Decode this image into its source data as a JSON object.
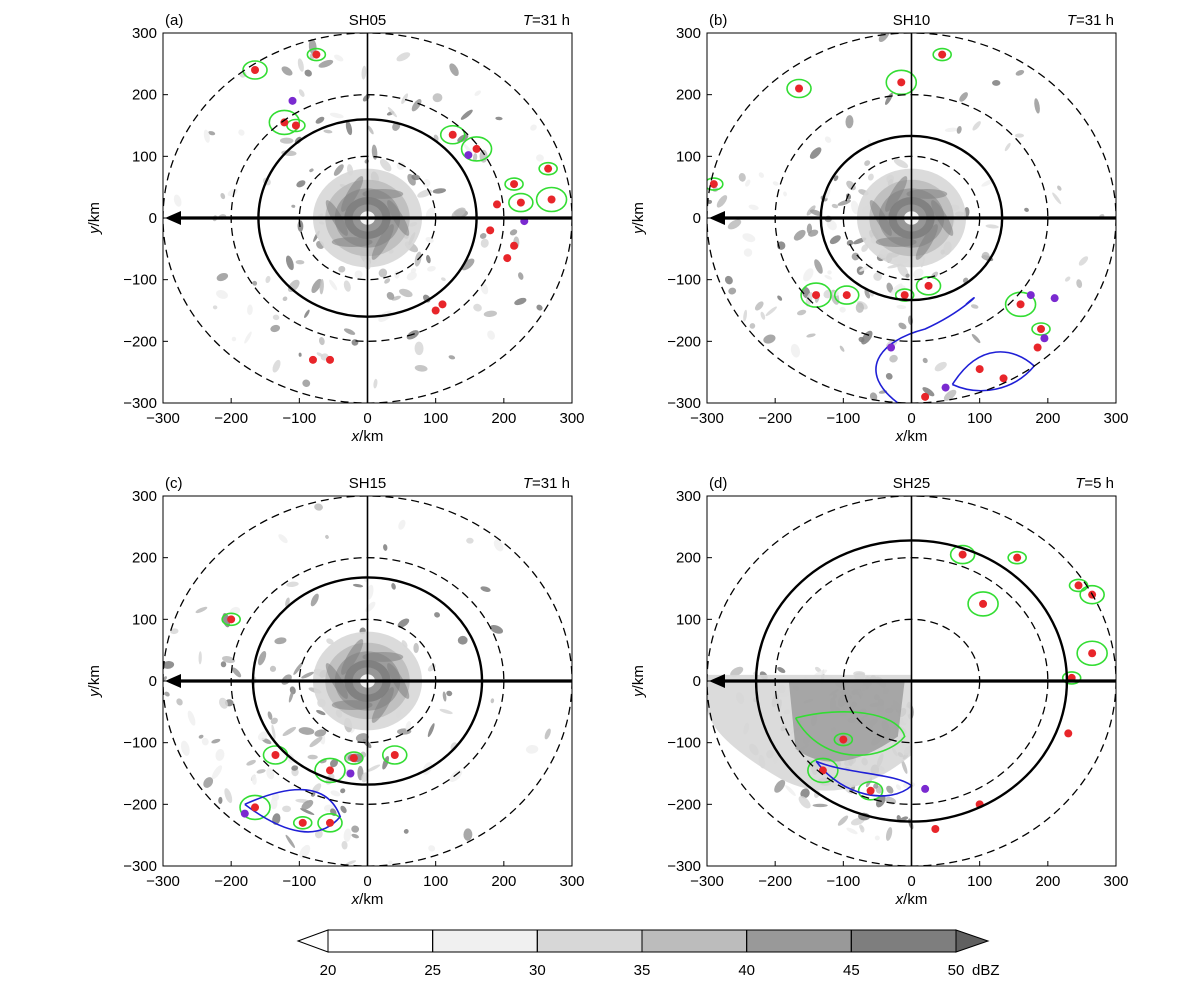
{
  "chart_data": [
    {
      "type": "contour",
      "panel_label": "(a)",
      "title": "SH05",
      "time_label": {
        "var": "T",
        "text": "=31 h"
      },
      "xlabel": {
        "var": "x",
        "unit": "/km"
      },
      "ylabel": {
        "var": "y",
        "unit": "/km"
      },
      "xlim": [
        -300,
        300
      ],
      "ylim": [
        -300,
        300
      ],
      "xticks": [
        -300,
        -200,
        -100,
        0,
        100,
        200,
        300
      ],
      "yticks": [
        -300,
        -200,
        -100,
        0,
        100,
        200,
        300
      ],
      "dashed_circle_radii_km": [
        100,
        200,
        300
      ],
      "solid_circle_radius_km": 160,
      "shear_arrow": "toward -x",
      "red_dots": [
        [
          -75,
          265
        ],
        [
          -165,
          240
        ],
        [
          -122,
          155
        ],
        [
          -105,
          150
        ],
        [
          125,
          135
        ],
        [
          160,
          112
        ],
        [
          215,
          55
        ],
        [
          225,
          25
        ],
        [
          270,
          30
        ],
        [
          265,
          80
        ],
        [
          190,
          22
        ],
        [
          180,
          -20
        ],
        [
          205,
          -65
        ],
        [
          215,
          -45
        ],
        [
          110,
          -140
        ],
        [
          100,
          -150
        ],
        [
          -80,
          -230
        ],
        [
          -55,
          -230
        ]
      ],
      "purple_dots": [
        [
          -110,
          190
        ],
        [
          148,
          102
        ],
        [
          230,
          -5
        ]
      ],
      "core_ring_dbz": [
        40,
        45
      ],
      "colorbar": {
        "unit": "dBZ",
        "ticks": [
          20,
          25,
          30,
          35,
          40,
          45,
          50
        ]
      }
    },
    {
      "type": "contour",
      "panel_label": "(b)",
      "title": "SH10",
      "time_label": {
        "var": "T",
        "text": "=31 h"
      },
      "xlabel": {
        "var": "x",
        "unit": "/km"
      },
      "ylabel": {
        "var": "y",
        "unit": "/km"
      },
      "xlim": [
        -300,
        300
      ],
      "ylim": [
        -300,
        300
      ],
      "xticks": [
        -300,
        -200,
        -100,
        0,
        100,
        200,
        300
      ],
      "yticks": [
        -300,
        -200,
        -100,
        0,
        100,
        200,
        300
      ],
      "dashed_circle_radii_km": [
        100,
        200,
        300
      ],
      "solid_circle_radius_km": 133,
      "shear_arrow": "toward -x",
      "red_dots": [
        [
          -290,
          55
        ],
        [
          -165,
          210
        ],
        [
          -15,
          220
        ],
        [
          45,
          265
        ],
        [
          -95,
          -125
        ],
        [
          -140,
          -125
        ],
        [
          -10,
          -125
        ],
        [
          25,
          -110
        ],
        [
          160,
          -140
        ],
        [
          190,
          -180
        ],
        [
          185,
          -210
        ],
        [
          20,
          -290
        ],
        [
          100,
          -245
        ],
        [
          135,
          -260
        ]
      ],
      "purple_dots": [
        [
          -30,
          -210
        ],
        [
          50,
          -275
        ],
        [
          175,
          -125
        ],
        [
          195,
          -195
        ],
        [
          210,
          -130
        ]
      ],
      "core_ring_dbz": [
        40,
        45
      ],
      "colorbar": {
        "unit": "dBZ",
        "ticks": [
          20,
          25,
          30,
          35,
          40,
          45,
          50
        ]
      }
    },
    {
      "type": "contour",
      "panel_label": "(c)",
      "title": "SH15",
      "time_label": {
        "var": "T",
        "text": "=31 h"
      },
      "xlabel": {
        "var": "x",
        "unit": "/km"
      },
      "ylabel": {
        "var": "y",
        "unit": "/km"
      },
      "xlim": [
        -300,
        300
      ],
      "ylim": [
        -300,
        300
      ],
      "xticks": [
        -300,
        -200,
        -100,
        0,
        100,
        200,
        300
      ],
      "yticks": [
        -300,
        -200,
        -100,
        0,
        100,
        200,
        300
      ],
      "dashed_circle_radii_km": [
        100,
        200,
        300
      ],
      "solid_circle_radius_km": 168,
      "shear_arrow": "toward -x",
      "red_dots": [
        [
          -200,
          100
        ],
        [
          -135,
          -120
        ],
        [
          -55,
          -145
        ],
        [
          -20,
          -125
        ],
        [
          40,
          -120
        ],
        [
          -165,
          -205
        ],
        [
          -95,
          -230
        ],
        [
          -55,
          -230
        ]
      ],
      "purple_dots": [
        [
          -25,
          -150
        ],
        [
          -180,
          -215
        ]
      ],
      "core_ring_dbz": [
        40,
        45
      ],
      "colorbar": {
        "unit": "dBZ",
        "ticks": [
          20,
          25,
          30,
          35,
          40,
          45,
          50
        ]
      }
    },
    {
      "type": "contour",
      "panel_label": "(d)",
      "title": "SH25",
      "time_label": {
        "var": "T",
        "text": "=5 h"
      },
      "xlabel": {
        "var": "x",
        "unit": "/km"
      },
      "ylabel": {
        "var": "y",
        "unit": "/km"
      },
      "xlim": [
        -300,
        300
      ],
      "ylim": [
        -300,
        300
      ],
      "xticks": [
        -300,
        -200,
        -100,
        0,
        100,
        200,
        300
      ],
      "yticks": [
        -300,
        -200,
        -100,
        0,
        100,
        200,
        300
      ],
      "dashed_circle_radii_km": [
        100,
        200,
        300
      ],
      "solid_circle_radius_km": 228,
      "shear_arrow": "toward -x",
      "red_dots": [
        [
          -100,
          -95
        ],
        [
          -60,
          -178
        ],
        [
          -130,
          -145
        ],
        [
          155,
          200
        ],
        [
          75,
          205
        ],
        [
          105,
          125
        ],
        [
          245,
          155
        ],
        [
          265,
          140
        ],
        [
          265,
          45
        ],
        [
          235,
          5
        ],
        [
          230,
          -85
        ],
        [
          35,
          -240
        ],
        [
          100,
          -200
        ]
      ],
      "purple_dots": [
        [
          20,
          -175
        ]
      ],
      "core_ring_dbz": [],
      "colorbar": {
        "unit": "dBZ",
        "ticks": [
          20,
          25,
          30,
          35,
          40,
          45,
          50
        ]
      }
    }
  ],
  "colorbar": {
    "unit": "dBZ",
    "ticks": [
      "20",
      "25",
      "30",
      "35",
      "40",
      "45",
      "50"
    ],
    "colors": [
      "#ffffff",
      "#f0f0f0",
      "#d7d7d7",
      "#bcbcbc",
      "#999999",
      "#7e7e7e",
      "#606060"
    ],
    "extend": "both"
  },
  "colors": {
    "red_dot": "#e8252a",
    "purple_dot": "#7a2ad0",
    "green_contour": "#33dd33",
    "blue_contour": "#1f1fd6",
    "outline": "#000000"
  }
}
